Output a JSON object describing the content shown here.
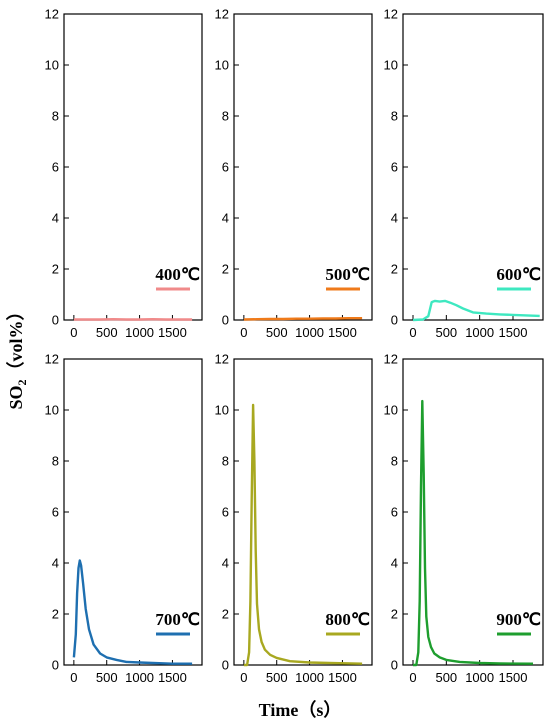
{
  "figure": {
    "ylabel_main": "SO",
    "ylabel_sub": "2",
    "ylabel_unit": "（vol%）",
    "xlabel": "Time（s）"
  },
  "chart_data": [
    {
      "type": "line",
      "legend": "400℃",
      "color": "#f08a8a",
      "ylim": [
        0,
        12
      ],
      "yticks": [
        "0",
        "2",
        "4",
        "6",
        "8",
        "10",
        "12"
      ],
      "xticks": [
        "0",
        "500",
        "1000",
        "1500"
      ],
      "x": [
        0,
        200,
        400,
        600,
        800,
        1000,
        1200,
        1400,
        1600,
        1800
      ],
      "y": [
        0.02,
        0.02,
        0.02,
        0.03,
        0.02,
        0.02,
        0.03,
        0.02,
        0.02,
        0.02
      ]
    },
    {
      "type": "line",
      "legend": "500℃",
      "color": "#ef7a1a",
      "ylim": [
        0,
        12
      ],
      "yticks": [
        "0",
        "2",
        "4",
        "6",
        "8",
        "10",
        "12"
      ],
      "xticks": [
        "0",
        "500",
        "1000",
        "1500"
      ],
      "x": [
        0,
        200,
        400,
        600,
        800,
        1000,
        1200,
        1400,
        1600,
        1800
      ],
      "y": [
        0.02,
        0.03,
        0.04,
        0.04,
        0.05,
        0.05,
        0.06,
        0.06,
        0.07,
        0.07
      ]
    },
    {
      "type": "line",
      "legend": "600℃",
      "color": "#3ee8c0",
      "ylim": [
        0,
        12
      ],
      "yticks": [
        "0",
        "2",
        "4",
        "6",
        "8",
        "10",
        "12"
      ],
      "xticks": [
        "0",
        "500",
        "1000",
        "1500"
      ],
      "x": [
        0,
        150,
        230,
        280,
        330,
        400,
        480,
        560,
        650,
        750,
        900,
        1100,
        1300,
        1500,
        1700,
        1900
      ],
      "y": [
        0.0,
        0.02,
        0.15,
        0.7,
        0.75,
        0.72,
        0.75,
        0.68,
        0.58,
        0.45,
        0.3,
        0.25,
        0.22,
        0.2,
        0.18,
        0.16
      ]
    },
    {
      "type": "line",
      "legend": "700℃",
      "color": "#1e6fb0",
      "ylim": [
        0,
        12
      ],
      "yticks": [
        "0",
        "2",
        "4",
        "6",
        "8",
        "10",
        "12"
      ],
      "xticks": [
        "0",
        "500",
        "1000",
        "1500"
      ],
      "x": [
        0,
        30,
        50,
        70,
        90,
        110,
        140,
        180,
        230,
        300,
        400,
        500,
        650,
        800,
        1000,
        1200,
        1500,
        1800
      ],
      "y": [
        0.3,
        1.2,
        2.8,
        3.8,
        4.1,
        3.9,
        3.2,
        2.2,
        1.4,
        0.8,
        0.45,
        0.3,
        0.2,
        0.12,
        0.1,
        0.08,
        0.05,
        0.05
      ]
    },
    {
      "type": "line",
      "legend": "800℃",
      "color": "#a8a820",
      "ylim": [
        0,
        12
      ],
      "yticks": [
        "0",
        "2",
        "4",
        "6",
        "8",
        "10",
        "12"
      ],
      "xticks": [
        "0",
        "500",
        "1000",
        "1500"
      ],
      "x": [
        0,
        50,
        80,
        100,
        120,
        140,
        160,
        180,
        200,
        230,
        270,
        320,
        400,
        500,
        700,
        1000,
        1300,
        1800
      ],
      "y": [
        0.0,
        0.0,
        0.5,
        2.5,
        6.5,
        10.2,
        8.0,
        4.5,
        2.4,
        1.4,
        0.9,
        0.6,
        0.4,
        0.28,
        0.15,
        0.1,
        0.08,
        0.05
      ]
    },
    {
      "type": "line",
      "legend": "900℃",
      "color": "#1e9e2e",
      "ylim": [
        0,
        12
      ],
      "yticks": [
        "0",
        "2",
        "4",
        "6",
        "8",
        "10",
        "12"
      ],
      "xticks": [
        "0",
        "500",
        "1000",
        "1500"
      ],
      "x": [
        0,
        50,
        80,
        100,
        120,
        140,
        160,
        180,
        200,
        230,
        270,
        320,
        400,
        500,
        700,
        1000,
        1300,
        1800
      ],
      "y": [
        0.0,
        0.0,
        0.5,
        2.5,
        7.0,
        10.35,
        7.5,
        3.8,
        1.9,
        1.1,
        0.7,
        0.45,
        0.3,
        0.2,
        0.12,
        0.08,
        0.06,
        0.05
      ]
    }
  ]
}
